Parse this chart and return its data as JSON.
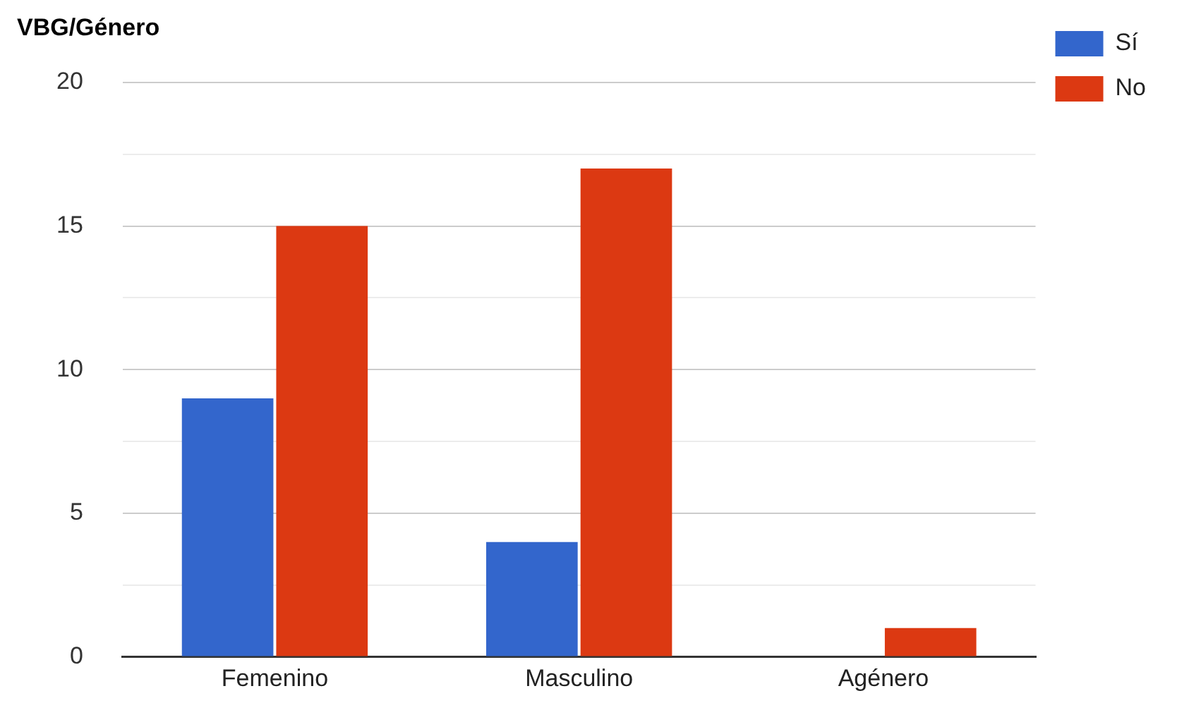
{
  "chart_data": {
    "type": "bar",
    "title": "VBG/Género",
    "categories": [
      "Femenino",
      "Masculino",
      "Agénero"
    ],
    "series": [
      {
        "name": "Sí",
        "color": "#3366cc",
        "values": [
          9,
          4,
          0
        ]
      },
      {
        "name": "No",
        "color": "#dc3912",
        "values": [
          15,
          17,
          1
        ]
      }
    ],
    "ylim": [
      0,
      20
    ],
    "yticks": [
      0,
      {
        "value": 2.5,
        "label": null
      },
      5,
      {
        "value": 7.5,
        "label": null
      },
      10,
      {
        "value": 12.5,
        "label": null
      },
      15,
      {
        "value": 17.5,
        "label": null
      },
      20
    ],
    "grid": "y",
    "legend": "top right"
  }
}
